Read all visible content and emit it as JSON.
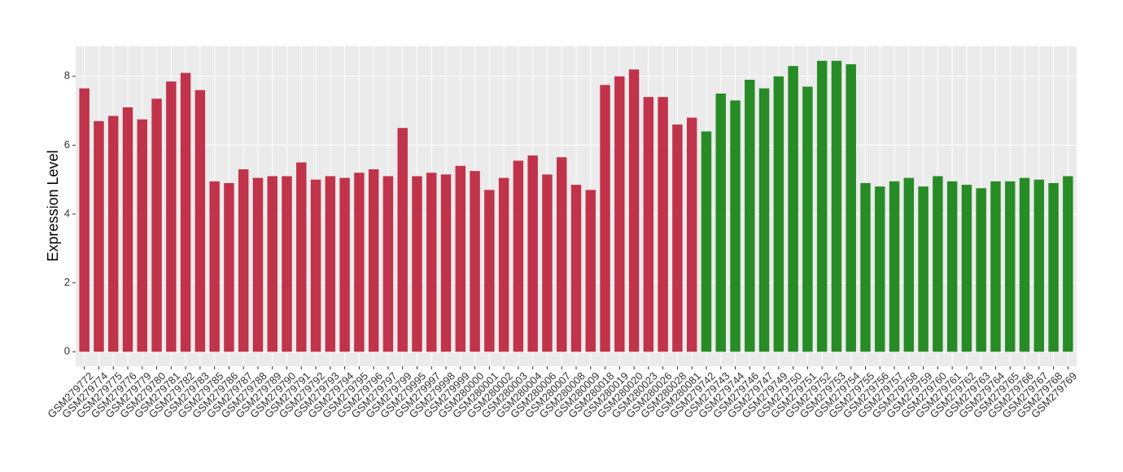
{
  "chart_data": {
    "type": "bar",
    "y_label": "Expression Level",
    "categories": [
      "GSM279772",
      "GSM279774",
      "GSM279775",
      "GSM279776",
      "GSM279779",
      "GSM279780",
      "GSM279781",
      "GSM279782",
      "GSM279783",
      "GSM279785",
      "GSM279786",
      "GSM279787",
      "GSM279788",
      "GSM279789",
      "GSM279790",
      "GSM279791",
      "GSM279792",
      "GSM279793",
      "GSM279794",
      "GSM279795",
      "GSM279796",
      "GSM279797",
      "GSM279799",
      "GSM279995",
      "GSM279997",
      "GSM279998",
      "GSM279999",
      "GSM280000",
      "GSM280001",
      "GSM280002",
      "GSM280003",
      "GSM280004",
      "GSM280006",
      "GSM280007",
      "GSM280008",
      "GSM280009",
      "GSM280018",
      "GSM280019",
      "GSM280020",
      "GSM280023",
      "GSM280026",
      "GSM280028",
      "GSM280081",
      "GSM279742",
      "GSM279743",
      "GSM279744",
      "GSM279746",
      "GSM279747",
      "GSM279749",
      "GSM279750",
      "GSM279751",
      "GSM279752",
      "GSM279753",
      "GSM279754",
      "GSM279755",
      "GSM279756",
      "GSM279757",
      "GSM279758",
      "GSM279759",
      "GSM279760",
      "GSM279761",
      "GSM279762",
      "GSM279763",
      "GSM279764",
      "GSM279765",
      "GSM279766",
      "GSM279767",
      "GSM279768",
      "GSM279769"
    ],
    "values": [
      7.65,
      6.7,
      6.85,
      7.1,
      6.75,
      7.35,
      7.85,
      8.1,
      7.6,
      4.95,
      4.9,
      5.3,
      5.05,
      5.1,
      5.1,
      5.5,
      5.0,
      5.1,
      5.05,
      5.2,
      5.3,
      5.1,
      6.5,
      5.1,
      5.2,
      5.15,
      5.4,
      5.25,
      4.7,
      5.05,
      5.55,
      5.7,
      5.15,
      5.65,
      4.85,
      4.7,
      7.75,
      8.0,
      8.2,
      7.4,
      7.4,
      6.6,
      6.8,
      6.4,
      7.5,
      7.3,
      7.9,
      7.65,
      8.0,
      8.3,
      7.7,
      8.45,
      8.45,
      8.35,
      4.9,
      4.8,
      4.95,
      5.05,
      4.8,
      5.1,
      4.95,
      4.85,
      4.75,
      4.95,
      4.95,
      5.05,
      5.0,
      4.9,
      5.1
    ],
    "colors": [
      "#c0334a",
      "#c0334a",
      "#c0334a",
      "#c0334a",
      "#c0334a",
      "#c0334a",
      "#c0334a",
      "#c0334a",
      "#c0334a",
      "#c0334a",
      "#c0334a",
      "#c0334a",
      "#c0334a",
      "#c0334a",
      "#c0334a",
      "#c0334a",
      "#c0334a",
      "#c0334a",
      "#c0334a",
      "#c0334a",
      "#c0334a",
      "#c0334a",
      "#c0334a",
      "#c0334a",
      "#c0334a",
      "#c0334a",
      "#c0334a",
      "#c0334a",
      "#c0334a",
      "#c0334a",
      "#c0334a",
      "#c0334a",
      "#c0334a",
      "#c0334a",
      "#c0334a",
      "#c0334a",
      "#c0334a",
      "#c0334a",
      "#c0334a",
      "#c0334a",
      "#c0334a",
      "#c0334a",
      "#c0334a",
      "#278b26",
      "#278b26",
      "#278b26",
      "#278b26",
      "#278b26",
      "#278b26",
      "#278b26",
      "#278b26",
      "#278b26",
      "#278b26",
      "#278b26",
      "#278b26",
      "#278b26",
      "#278b26",
      "#278b26",
      "#278b26",
      "#278b26",
      "#278b26",
      "#278b26",
      "#278b26",
      "#278b26",
      "#278b26",
      "#278b26",
      "#278b26",
      "#278b26",
      "#278b26"
    ],
    "ylim": [
      -0.42,
      8.87
    ],
    "yticks": [
      0,
      2,
      4,
      6,
      8
    ],
    "grid": true
  }
}
